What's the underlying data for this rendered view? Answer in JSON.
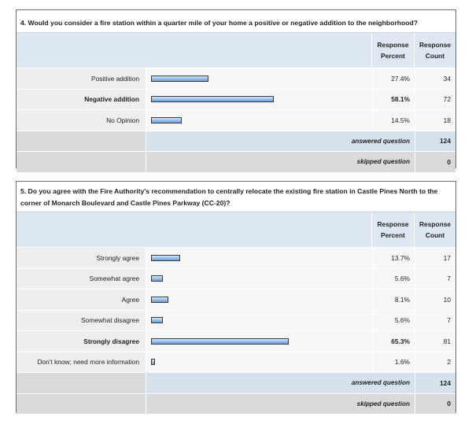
{
  "question4": {
    "title": "4. Would you consider a fire station within a quarter mile of your home a positive or negative addition to the neighborhood?",
    "header": {
      "percent_line1": "Response",
      "percent_line2": "Percent",
      "count_line1": "Response",
      "count_line2": "Count"
    },
    "rows": [
      {
        "label": "Positive addition",
        "percent": "27.4%",
        "count": "34",
        "fraction": 0.274,
        "bold": false
      },
      {
        "label": "Negative addition",
        "percent": "58.1%",
        "count": "72",
        "fraction": 0.581,
        "bold": true
      },
      {
        "label": "No Opinion",
        "percent": "14.5%",
        "count": "18",
        "fraction": 0.145,
        "bold": false
      }
    ],
    "answered_label": "answered question",
    "answered_value": "124",
    "skipped_label": "skipped question",
    "skipped_value": "0"
  },
  "question5": {
    "title": "5. Do you agree with the Fire Authority's recommendation to centrally relocate the existing fire station in Castle Pines North to the corner of Monarch Boulevard and Castle Pines Parkway (CC-20)?",
    "header": {
      "percent_line1": "Response",
      "percent_line2": "Percent",
      "count_line1": "Response",
      "count_line2": "Count"
    },
    "rows": [
      {
        "label": "Strongly agree",
        "percent": "13.7%",
        "count": "17",
        "fraction": 0.137,
        "bold": false
      },
      {
        "label": "Somewhat agree",
        "percent": "5.6%",
        "count": "7",
        "fraction": 0.056,
        "bold": false
      },
      {
        "label": "Agree",
        "percent": "8.1%",
        "count": "10",
        "fraction": 0.081,
        "bold": false
      },
      {
        "label": "Somewhat disagree",
        "percent": "5.6%",
        "count": "7",
        "fraction": 0.056,
        "bold": false
      },
      {
        "label": "Strongly disagree",
        "percent": "65.3%",
        "count": "81",
        "fraction": 0.653,
        "bold": true
      },
      {
        "label": "Don't know; need more information",
        "percent": "1.6%",
        "count": "2",
        "fraction": 0.016,
        "bold": false
      }
    ],
    "answered_label": "answered question",
    "answered_value": "124",
    "skipped_label": "skipped question",
    "skipped_value": "0"
  }
}
